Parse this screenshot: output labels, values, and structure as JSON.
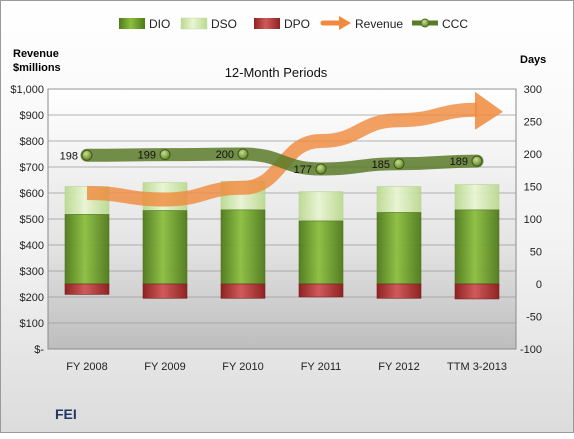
{
  "chart_data": {
    "type": "bar",
    "title": "12-Month Periods",
    "company": "FEI",
    "left_axis_title": [
      "Revenue",
      "$millions"
    ],
    "right_axis_title": "Days",
    "categories": [
      "FY 2008",
      "FY 2009",
      "FY 2010",
      "FY 2011",
      "FY 2012",
      "TTM 3-2013"
    ],
    "left_axis": {
      "ylim": [
        0,
        1000
      ],
      "ticks": [
        0,
        100,
        200,
        300,
        400,
        500,
        600,
        700,
        800,
        900,
        1000
      ],
      "tick_labels": [
        "$-",
        "$100",
        "$200",
        "$300",
        "$400",
        "$500",
        "$600",
        "$700",
        "$800",
        "$900",
        "$1,000"
      ]
    },
    "right_axis": {
      "ylim": [
        -100,
        300
      ],
      "ticks": [
        -100,
        -50,
        0,
        50,
        100,
        150,
        200,
        250,
        300
      ],
      "tick_labels": [
        "-100",
        "-50",
        "0",
        "50",
        "100",
        "150",
        "200",
        "250",
        "300"
      ]
    },
    "series": [
      {
        "name": "DIO",
        "type": "stacked-bar",
        "axis": "right",
        "values": [
          107,
          113,
          114,
          97,
          110,
          114
        ],
        "color": "#6e9e2c"
      },
      {
        "name": "DSO",
        "type": "stacked-bar",
        "axis": "right",
        "values": [
          43,
          43,
          44,
          45,
          40,
          39
        ],
        "color": "#d4e8b0"
      },
      {
        "name": "DPO",
        "type": "negative-bar",
        "axis": "right",
        "values": [
          -16,
          -22,
          -22,
          -20,
          -22,
          -23
        ],
        "color": "#b23a3a"
      },
      {
        "name": "Revenue",
        "type": "arrow-line",
        "axis": "left",
        "values": [
          600,
          575,
          620,
          800,
          880,
          920
        ],
        "color": "#f08a3c"
      },
      {
        "name": "CCC",
        "type": "line",
        "axis": "right",
        "values": [
          198,
          199,
          200,
          177,
          185,
          189
        ],
        "labels": [
          "198",
          "199",
          "200",
          "177",
          "185",
          "189"
        ],
        "color": "#5a7a28"
      }
    ],
    "grid": true,
    "legend_position": "top"
  }
}
